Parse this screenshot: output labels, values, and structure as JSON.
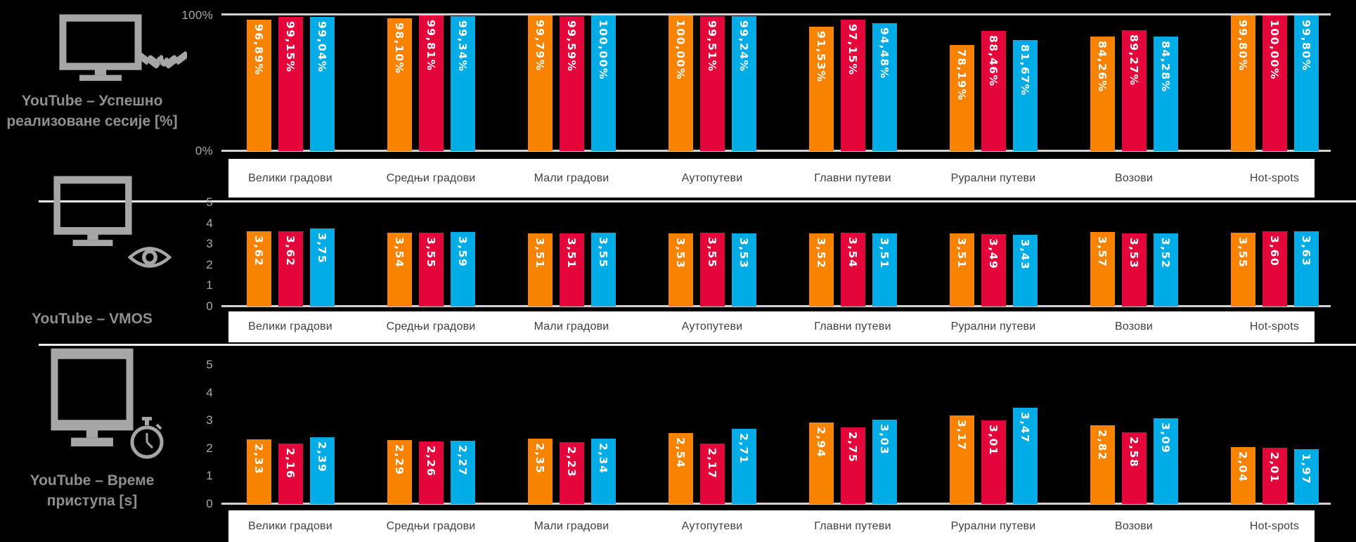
{
  "background_color": "#000000",
  "categories": [
    "Велики градови",
    "Средњи градови",
    "Мали градови",
    "Аутопутеви",
    "Главни путеви",
    "Рурални путеви",
    "Возови",
    "Hot-spots"
  ],
  "series_colors": [
    "#F78300",
    "#E4053A",
    "#00ACE6"
  ],
  "chart_data": [
    {
      "type": "bar",
      "title": "YouTube – Успешно реализоване сесије [%]",
      "title_lines": [
        "YouTube – Успешно",
        "реализоване сесије [%]"
      ],
      "icon": "monitor-handshake-icon",
      "categories": [
        "Велики градови",
        "Средњи градови",
        "Мали градови",
        "Аутопутеви",
        "Главни путеви",
        "Рурални путеви",
        "Возови",
        "Hot-spots"
      ],
      "y_ticks": [
        "100%",
        "0%"
      ],
      "ylim": [
        0,
        100
      ],
      "grid": "top-and-baseline",
      "legend": "none",
      "value_suffix": "%",
      "value_decimals": 2,
      "decimal_separator": ",",
      "series": [
        {
          "name": "orange-series",
          "color": "#F78300",
          "values": [
            96.89,
            98.1,
            99.79,
            100.0,
            91.53,
            78.19,
            84.26,
            99.8
          ]
        },
        {
          "name": "red-series",
          "color": "#E4053A",
          "values": [
            99.15,
            99.81,
            99.59,
            99.51,
            97.15,
            88.46,
            89.27,
            100.0
          ]
        },
        {
          "name": "blue-series",
          "color": "#00ACE6",
          "values": [
            99.04,
            99.34,
            100.0,
            99.24,
            94.48,
            81.67,
            84.28,
            99.8
          ]
        }
      ]
    },
    {
      "type": "bar",
      "title": "YouTube – VMOS",
      "title_lines": [
        "YouTube – VMOS"
      ],
      "icon": "monitor-eye-icon",
      "categories": [
        "Велики градови",
        "Средњи градови",
        "Мали градови",
        "Аутопутеви",
        "Главни путеви",
        "Рурални путеви",
        "Возови",
        "Hot-spots"
      ],
      "y_ticks": [
        "5",
        "4",
        "3",
        "2",
        "1",
        "0"
      ],
      "ylim": [
        0,
        5
      ],
      "grid": "baseline-only",
      "legend": "none",
      "value_suffix": "",
      "value_decimals": 2,
      "decimal_separator": ",",
      "series": [
        {
          "name": "orange-series",
          "color": "#F78300",
          "values": [
            3.62,
            3.54,
            3.51,
            3.53,
            3.52,
            3.51,
            3.57,
            3.55
          ]
        },
        {
          "name": "red-series",
          "color": "#E4053A",
          "values": [
            3.62,
            3.55,
            3.51,
            3.55,
            3.54,
            3.49,
            3.53,
            3.6
          ]
        },
        {
          "name": "blue-series",
          "color": "#00ACE6",
          "values": [
            3.75,
            3.59,
            3.55,
            3.53,
            3.51,
            3.43,
            3.52,
            3.63
          ]
        }
      ]
    },
    {
      "type": "bar",
      "title": "YouTube – Време приступа [s]",
      "title_lines": [
        "YouTube – Време",
        "приступа [s]"
      ],
      "icon": "monitor-stopwatch-icon",
      "categories": [
        "Велики градови",
        "Средњи градови",
        "Мали градови",
        "Аутопутеви",
        "Главни путеви",
        "Рурални путеви",
        "Возови",
        "Hot-spots"
      ],
      "y_ticks": [
        "5",
        "4",
        "3",
        "2",
        "1",
        "0"
      ],
      "ylim": [
        0,
        5
      ],
      "grid": "baseline-only",
      "legend": "none",
      "value_suffix": "",
      "value_decimals": 2,
      "decimal_separator": ",",
      "series": [
        {
          "name": "orange-series",
          "color": "#F78300",
          "values": [
            2.33,
            2.29,
            2.35,
            2.54,
            2.94,
            3.17,
            2.82,
            2.04
          ]
        },
        {
          "name": "red-series",
          "color": "#E4053A",
          "values": [
            2.16,
            2.26,
            2.23,
            2.17,
            2.75,
            3.01,
            2.58,
            2.01
          ]
        },
        {
          "name": "blue-series",
          "color": "#00ACE6",
          "values": [
            2.39,
            2.27,
            2.34,
            2.71,
            3.03,
            3.47,
            3.09,
            1.97
          ]
        }
      ]
    }
  ]
}
